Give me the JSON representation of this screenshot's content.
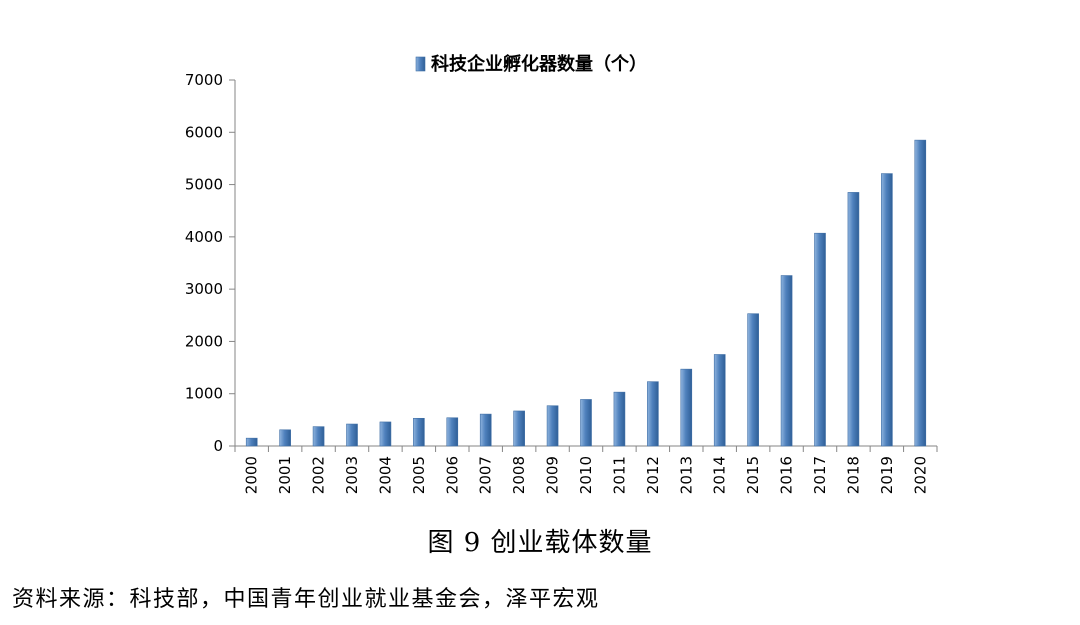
{
  "caption": "图 9 创业载体数量",
  "source": "资料来源：科技部，中国青年创业就业基金会，泽平宏观",
  "chart_data": {
    "type": "bar",
    "categories": [
      "2000",
      "2001",
      "2002",
      "2003",
      "2004",
      "2005",
      "2006",
      "2007",
      "2008",
      "2009",
      "2010",
      "2011",
      "2012",
      "2013",
      "2014",
      "2015",
      "2016",
      "2017",
      "2018",
      "2019",
      "2020"
    ],
    "series": [
      {
        "name": "科技企业孵化器数量（个）",
        "values": [
          150,
          310,
          370,
          420,
          460,
          530,
          540,
          610,
          670,
          770,
          890,
          1030,
          1230,
          1470,
          1750,
          2530,
          3260,
          4070,
          4850,
          5210,
          5850
        ]
      }
    ],
    "yticks": [
      "0",
      "1000",
      "2000",
      "3000",
      "4000",
      "5000",
      "6000",
      "7000"
    ],
    "ylim": [
      0,
      7000
    ],
    "grid": false,
    "legend": "top-center",
    "bar_color": "#4F81BD"
  }
}
